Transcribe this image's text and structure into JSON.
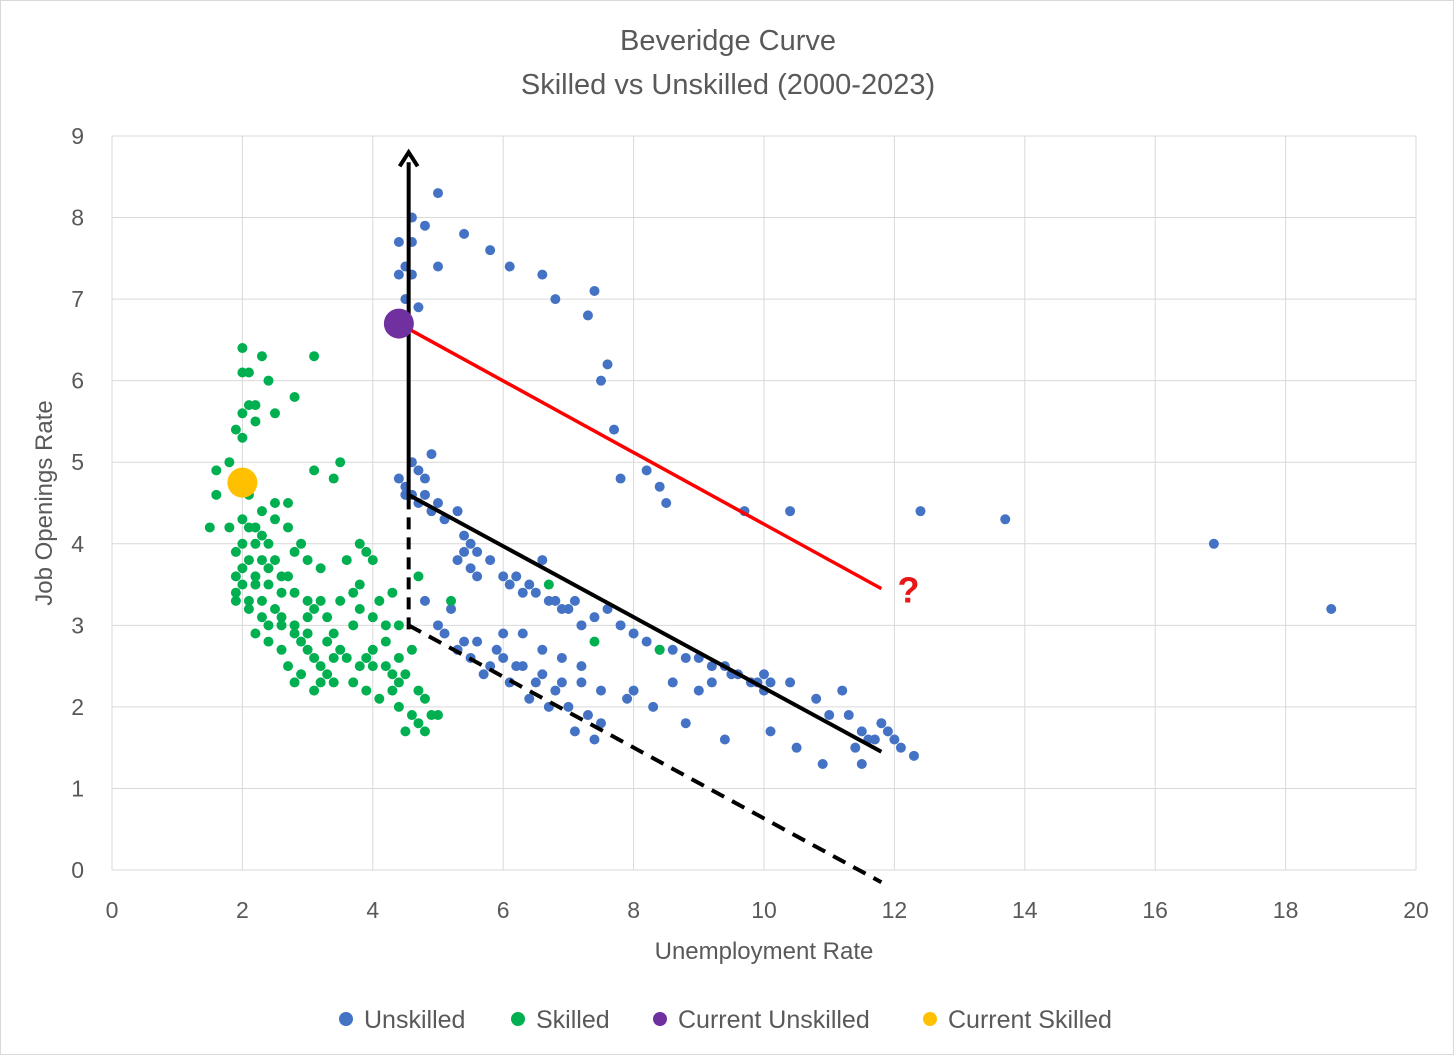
{
  "chart_data": {
    "type": "scatter",
    "title": "Beveridge Curve",
    "subtitle": "Skilled vs Unskilled (2000-2023)",
    "xlabel": "Unemployment Rate",
    "ylabel": "Job Openings Rate",
    "xlim": [
      0,
      20
    ],
    "ylim": [
      0,
      9
    ],
    "x_ticks": [
      "0",
      "2",
      "4",
      "6",
      "8",
      "10",
      "12",
      "14",
      "16",
      "18",
      "20"
    ],
    "y_ticks": [
      "0",
      "1",
      "2",
      "3",
      "4",
      "5",
      "6",
      "7",
      "8",
      "9"
    ],
    "grid": true,
    "legend_position": "bottom",
    "colors": {
      "unskilled": "#4472c4",
      "skilled": "#00b050",
      "current_unskilled": "#7030a0",
      "current_skilled": "#ffc000",
      "arrow": "#000000",
      "red_line": "#ff0000",
      "question": "#e81717",
      "grid": "#d9d9d9"
    },
    "series": [
      {
        "name": "Unskilled",
        "color": "#4472c4",
        "points": [
          [
            5.0,
            8.3
          ],
          [
            4.6,
            8.0
          ],
          [
            4.6,
            7.7
          ],
          [
            4.4,
            7.7
          ],
          [
            4.8,
            7.9
          ],
          [
            5.4,
            7.8
          ],
          [
            5.8,
            7.6
          ],
          [
            6.1,
            7.4
          ],
          [
            6.6,
            7.3
          ],
          [
            6.8,
            7.0
          ],
          [
            7.4,
            7.1
          ],
          [
            7.3,
            6.8
          ],
          [
            4.5,
            7.4
          ],
          [
            4.4,
            7.3
          ],
          [
            4.6,
            7.3
          ],
          [
            5.0,
            7.4
          ],
          [
            4.5,
            7.0
          ],
          [
            4.7,
            6.9
          ],
          [
            7.6,
            6.2
          ],
          [
            7.5,
            6.0
          ],
          [
            7.7,
            5.4
          ],
          [
            8.2,
            4.9
          ],
          [
            8.4,
            4.7
          ],
          [
            7.8,
            4.8
          ],
          [
            8.5,
            4.5
          ],
          [
            9.7,
            4.4
          ],
          [
            10.4,
            4.4
          ],
          [
            12.4,
            4.4
          ],
          [
            13.7,
            4.3
          ],
          [
            16.9,
            4.0
          ],
          [
            18.7,
            3.2
          ],
          [
            4.9,
            5.1
          ],
          [
            4.6,
            5.0
          ],
          [
            4.4,
            4.8
          ],
          [
            4.5,
            4.7
          ],
          [
            4.7,
            4.9
          ],
          [
            4.8,
            4.8
          ],
          [
            4.5,
            4.6
          ],
          [
            4.6,
            4.6
          ],
          [
            4.7,
            4.5
          ],
          [
            4.8,
            4.6
          ],
          [
            4.9,
            4.4
          ],
          [
            5.0,
            4.5
          ],
          [
            5.1,
            4.3
          ],
          [
            5.3,
            4.4
          ],
          [
            5.4,
            4.1
          ],
          [
            5.5,
            4.0
          ],
          [
            5.6,
            3.9
          ],
          [
            5.4,
            3.9
          ],
          [
            5.3,
            3.8
          ],
          [
            5.5,
            3.7
          ],
          [
            5.6,
            3.6
          ],
          [
            5.8,
            3.8
          ],
          [
            6.0,
            3.6
          ],
          [
            6.1,
            3.5
          ],
          [
            6.2,
            3.6
          ],
          [
            6.3,
            3.4
          ],
          [
            6.4,
            3.5
          ],
          [
            6.5,
            3.4
          ],
          [
            6.6,
            3.8
          ],
          [
            6.7,
            3.3
          ],
          [
            6.8,
            3.3
          ],
          [
            6.9,
            3.2
          ],
          [
            7.0,
            3.2
          ],
          [
            7.1,
            3.3
          ],
          [
            7.2,
            3.0
          ],
          [
            7.4,
            3.1
          ],
          [
            7.6,
            3.2
          ],
          [
            7.8,
            3.0
          ],
          [
            8.0,
            2.9
          ],
          [
            8.2,
            2.8
          ],
          [
            8.4,
            2.7
          ],
          [
            8.6,
            2.7
          ],
          [
            8.8,
            2.6
          ],
          [
            9.0,
            2.6
          ],
          [
            9.2,
            2.5
          ],
          [
            9.4,
            2.5
          ],
          [
            9.6,
            2.4
          ],
          [
            9.8,
            2.3
          ],
          [
            10.0,
            2.4
          ],
          [
            10.1,
            2.3
          ],
          [
            10.0,
            2.2
          ],
          [
            9.9,
            2.3
          ],
          [
            10.4,
            2.3
          ],
          [
            10.8,
            2.1
          ],
          [
            11.0,
            1.9
          ],
          [
            11.2,
            2.2
          ],
          [
            11.3,
            1.9
          ],
          [
            11.5,
            1.7
          ],
          [
            11.7,
            1.6
          ],
          [
            11.9,
            1.7
          ],
          [
            12.0,
            1.6
          ],
          [
            12.1,
            1.5
          ],
          [
            12.3,
            1.4
          ],
          [
            11.6,
            1.6
          ],
          [
            11.4,
            1.5
          ],
          [
            11.8,
            1.8
          ],
          [
            11.5,
            1.3
          ],
          [
            10.9,
            1.3
          ],
          [
            10.5,
            1.5
          ],
          [
            10.1,
            1.7
          ],
          [
            9.4,
            1.6
          ],
          [
            8.8,
            1.8
          ],
          [
            8.3,
            2.0
          ],
          [
            7.9,
            2.1
          ],
          [
            7.5,
            2.2
          ],
          [
            7.2,
            2.3
          ],
          [
            6.9,
            2.3
          ],
          [
            6.6,
            2.4
          ],
          [
            6.3,
            2.5
          ],
          [
            6.0,
            2.6
          ],
          [
            5.8,
            2.5
          ],
          [
            5.5,
            2.6
          ],
          [
            5.3,
            2.7
          ],
          [
            5.1,
            2.9
          ],
          [
            5.0,
            3.0
          ],
          [
            4.8,
            3.3
          ],
          [
            5.2,
            3.2
          ],
          [
            5.6,
            2.8
          ],
          [
            5.9,
            2.7
          ],
          [
            6.2,
            2.5
          ],
          [
            6.5,
            2.3
          ],
          [
            6.8,
            2.2
          ],
          [
            7.0,
            2.0
          ],
          [
            7.3,
            1.9
          ],
          [
            7.5,
            1.8
          ],
          [
            7.1,
            1.7
          ],
          [
            7.4,
            1.6
          ],
          [
            6.7,
            2.0
          ],
          [
            6.4,
            2.1
          ],
          [
            6.1,
            2.3
          ],
          [
            5.7,
            2.4
          ],
          [
            5.4,
            2.8
          ],
          [
            6.0,
            2.9
          ],
          [
            6.3,
            2.9
          ],
          [
            6.6,
            2.7
          ],
          [
            6.9,
            2.6
          ],
          [
            7.2,
            2.5
          ],
          [
            8.0,
            2.2
          ],
          [
            8.6,
            2.3
          ],
          [
            9.0,
            2.2
          ],
          [
            9.2,
            2.3
          ],
          [
            9.5,
            2.4
          ]
        ]
      },
      {
        "name": "Skilled",
        "color": "#00b050",
        "points": [
          [
            2.0,
            6.4
          ],
          [
            2.3,
            6.3
          ],
          [
            2.1,
            6.1
          ],
          [
            2.0,
            6.1
          ],
          [
            2.4,
            6.0
          ],
          [
            3.1,
            6.3
          ],
          [
            2.8,
            5.8
          ],
          [
            2.2,
            5.7
          ],
          [
            2.0,
            5.6
          ],
          [
            2.1,
            5.7
          ],
          [
            2.5,
            5.6
          ],
          [
            1.9,
            5.4
          ],
          [
            2.2,
            5.5
          ],
          [
            2.0,
            5.3
          ],
          [
            1.8,
            5.0
          ],
          [
            1.6,
            4.9
          ],
          [
            1.6,
            4.6
          ],
          [
            2.1,
            4.6
          ],
          [
            3.1,
            4.9
          ],
          [
            3.5,
            5.0
          ],
          [
            3.4,
            4.8
          ],
          [
            2.7,
            4.5
          ],
          [
            2.5,
            4.5
          ],
          [
            1.5,
            4.2
          ],
          [
            1.8,
            4.2
          ],
          [
            2.0,
            4.3
          ],
          [
            2.1,
            4.2
          ],
          [
            2.2,
            4.2
          ],
          [
            2.3,
            4.1
          ],
          [
            2.4,
            4.0
          ],
          [
            2.2,
            4.0
          ],
          [
            2.0,
            4.0
          ],
          [
            1.9,
            3.9
          ],
          [
            2.1,
            3.8
          ],
          [
            2.3,
            3.8
          ],
          [
            2.4,
            3.7
          ],
          [
            2.5,
            3.8
          ],
          [
            2.6,
            3.6
          ],
          [
            2.7,
            3.6
          ],
          [
            2.4,
            3.5
          ],
          [
            2.2,
            3.5
          ],
          [
            2.0,
            3.5
          ],
          [
            1.9,
            3.3
          ],
          [
            2.1,
            3.3
          ],
          [
            2.3,
            3.3
          ],
          [
            2.6,
            3.4
          ],
          [
            2.8,
            3.4
          ],
          [
            3.0,
            3.3
          ],
          [
            3.1,
            3.2
          ],
          [
            3.2,
            3.3
          ],
          [
            3.3,
            3.1
          ],
          [
            3.0,
            3.1
          ],
          [
            2.8,
            3.0
          ],
          [
            2.6,
            3.0
          ],
          [
            2.4,
            3.0
          ],
          [
            2.2,
            2.9
          ],
          [
            2.4,
            2.8
          ],
          [
            2.6,
            2.7
          ],
          [
            2.9,
            2.8
          ],
          [
            3.0,
            2.7
          ],
          [
            3.1,
            2.6
          ],
          [
            3.2,
            2.5
          ],
          [
            3.4,
            2.6
          ],
          [
            3.6,
            2.6
          ],
          [
            3.8,
            2.5
          ],
          [
            4.0,
            2.5
          ],
          [
            4.2,
            2.5
          ],
          [
            4.3,
            2.4
          ],
          [
            4.4,
            2.3
          ],
          [
            4.5,
            2.4
          ],
          [
            4.3,
            2.2
          ],
          [
            4.1,
            2.1
          ],
          [
            3.9,
            2.2
          ],
          [
            3.7,
            2.3
          ],
          [
            3.4,
            2.3
          ],
          [
            3.2,
            2.3
          ],
          [
            2.9,
            2.4
          ],
          [
            2.7,
            2.5
          ],
          [
            4.4,
            2.0
          ],
          [
            4.6,
            1.9
          ],
          [
            4.7,
            1.8
          ],
          [
            4.8,
            1.7
          ],
          [
            4.9,
            1.9
          ],
          [
            5.0,
            1.9
          ],
          [
            4.8,
            2.1
          ],
          [
            4.7,
            2.2
          ],
          [
            4.5,
            1.7
          ],
          [
            3.8,
            4.0
          ],
          [
            3.9,
            3.9
          ],
          [
            4.0,
            3.8
          ],
          [
            3.6,
            3.8
          ],
          [
            3.8,
            3.5
          ],
          [
            4.1,
            3.3
          ],
          [
            4.3,
            3.4
          ],
          [
            3.7,
            3.4
          ],
          [
            3.5,
            3.3
          ],
          [
            3.8,
            3.2
          ],
          [
            4.0,
            3.1
          ],
          [
            4.2,
            3.0
          ],
          [
            4.4,
            3.0
          ],
          [
            3.7,
            3.0
          ],
          [
            3.4,
            2.9
          ],
          [
            4.7,
            3.6
          ],
          [
            5.2,
            3.3
          ],
          [
            6.7,
            3.5
          ],
          [
            7.4,
            2.8
          ],
          [
            8.4,
            2.7
          ],
          [
            2.5,
            4.3
          ],
          [
            2.3,
            4.4
          ],
          [
            2.7,
            4.2
          ],
          [
            2.9,
            4.0
          ],
          [
            2.8,
            3.9
          ],
          [
            3.0,
            3.8
          ],
          [
            3.2,
            3.7
          ],
          [
            1.9,
            3.6
          ],
          [
            2.0,
            3.7
          ],
          [
            2.2,
            3.6
          ],
          [
            2.5,
            3.2
          ],
          [
            2.3,
            3.1
          ],
          [
            2.1,
            3.2
          ],
          [
            1.9,
            3.4
          ],
          [
            2.6,
            3.1
          ],
          [
            2.8,
            2.9
          ],
          [
            3.0,
            2.9
          ],
          [
            3.3,
            2.8
          ],
          [
            3.5,
            2.7
          ],
          [
            3.3,
            2.4
          ],
          [
            3.1,
            2.2
          ],
          [
            2.8,
            2.3
          ],
          [
            4.6,
            2.7
          ],
          [
            4.4,
            2.6
          ],
          [
            4.2,
            2.8
          ],
          [
            4.0,
            2.7
          ],
          [
            3.9,
            2.6
          ]
        ]
      },
      {
        "name": "Current Unskilled",
        "color": "#7030a0",
        "points": [
          [
            4.4,
            6.7
          ]
        ]
      },
      {
        "name": "Current Skilled",
        "color": "#ffc000",
        "points": [
          [
            2.0,
            4.75
          ]
        ]
      }
    ],
    "annotations": {
      "question_mark": "?",
      "vertical_arrow": {
        "x": 4.55,
        "y_from": 2.95,
        "y_to": 8.8
      },
      "solid_black_line": {
        "from": [
          4.55,
          4.6
        ],
        "to": [
          11.8,
          1.45
        ]
      },
      "dashed_black_line": {
        "from": [
          4.55,
          3.0
        ],
        "to": [
          11.8,
          -0.15
        ]
      },
      "red_line": {
        "from": [
          4.4,
          6.7
        ],
        "to": [
          11.8,
          3.45
        ]
      },
      "question_mark_position": [
        12.2,
        3.4
      ]
    }
  }
}
